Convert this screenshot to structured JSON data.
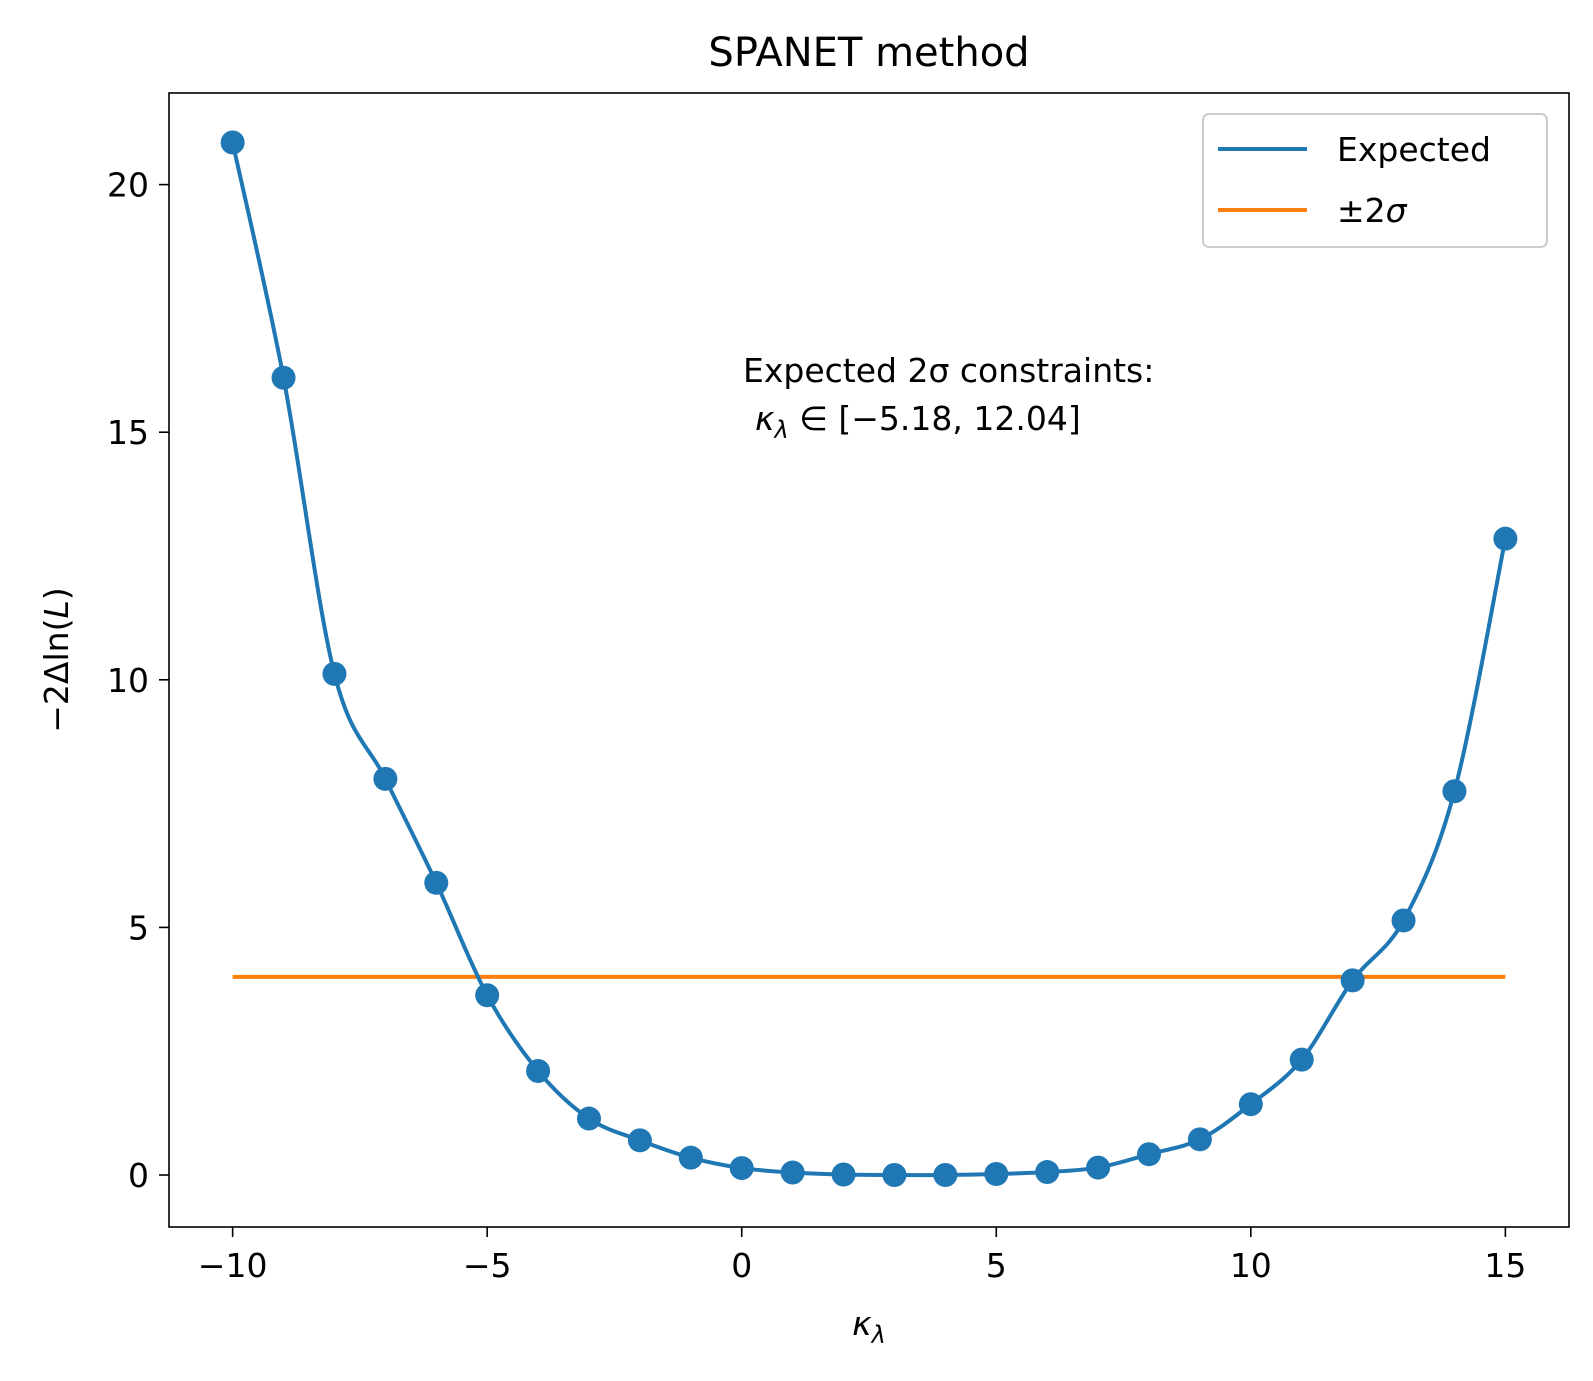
{
  "colors": {
    "expected": "#1f77b4",
    "sigma": "#ff7f0e",
    "axes": "#000000",
    "legend_border": "#cccccc"
  },
  "chart_data": {
    "type": "line",
    "title": "SPANET method",
    "xlabel": "κλ",
    "ylabel": "−2Δln(L)",
    "xlim": [
      -11.25,
      16.25
    ],
    "ylim": [
      -1.05,
      21.85
    ],
    "grid": false,
    "x_ticks": [
      -10,
      -5,
      0,
      5,
      10,
      15
    ],
    "x_tick_labels": [
      "−10",
      "−5",
      "0",
      "5",
      "10",
      "15"
    ],
    "y_ticks": [
      0,
      5,
      10,
      15,
      20
    ],
    "y_tick_labels": [
      "0",
      "5",
      "10",
      "15",
      "20"
    ],
    "legend": {
      "placement": "top-right",
      "entries": [
        {
          "label": "Expected",
          "color": "#1f77b4"
        },
        {
          "label": "±2σ",
          "color": "#ff7f0e"
        }
      ]
    },
    "series": [
      {
        "name": "Expected",
        "style": "line+markers",
        "color": "#1f77b4",
        "x": [
          -10,
          -9,
          -8,
          -7,
          -6,
          -5,
          -4,
          -3,
          -2,
          -1,
          0,
          1,
          2,
          3,
          4,
          5,
          6,
          7,
          8,
          9,
          10,
          11,
          12,
          13,
          14,
          15
        ],
        "values": [
          20.85,
          16.1,
          10.12,
          8.0,
          5.9,
          3.63,
          2.1,
          1.14,
          0.7,
          0.35,
          0.14,
          0.05,
          0.01,
          0.0,
          0.0,
          0.02,
          0.06,
          0.15,
          0.42,
          0.72,
          1.43,
          2.33,
          3.93,
          5.14,
          7.75,
          12.85
        ]
      },
      {
        "name": "±2σ",
        "style": "line",
        "color": "#ff7f0e",
        "x": [
          -10,
          15
        ],
        "values": [
          4.0,
          4.0
        ]
      }
    ],
    "annotation": {
      "line1": "Expected 2σ constraints:",
      "line2": "κλ ∈ [−5.18, 12.04]"
    }
  }
}
